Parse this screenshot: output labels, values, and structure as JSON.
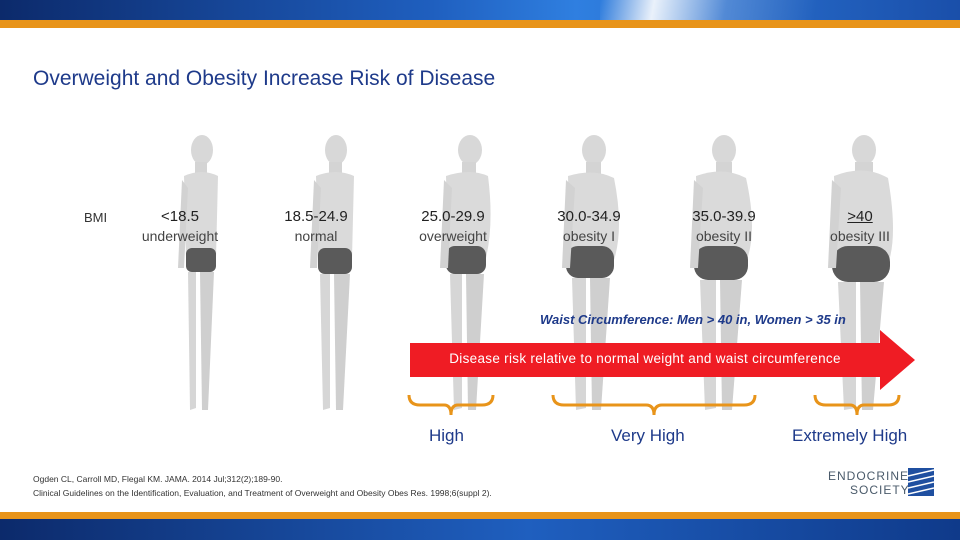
{
  "slide": {
    "title": "Overweight and Obesity Increase Risk of Disease",
    "bmi_label": "BMI",
    "categories": [
      {
        "range": "<18.5",
        "description": "underweight"
      },
      {
        "range": "18.5-24.9",
        "description": "normal"
      },
      {
        "range": "25.0-29.9",
        "description": "overweight"
      },
      {
        "range": "30.0-34.9",
        "description": "obesity I"
      },
      {
        "range": "35.0-39.9",
        "description": "obesity II"
      },
      {
        "range": ">40",
        "description": "obesity III"
      }
    ],
    "waist_note": "Waist Circumference: Men > 40 in, Women > 35 in",
    "arrow_text": "Disease risk relative to normal weight and waist circumference",
    "risk_levels": [
      "High",
      "Very High",
      "Extremely High"
    ],
    "citation": [
      "Ogden CL, Carroll MD, Flegal KM. JAMA. 2014 Jul;312(2);189-90.",
      "Clinical Guidelines on the Identification, Evaluation, and Treatment of Overweight and Obesity Obes Res. 1998;6(suppl 2)."
    ],
    "logo": {
      "line1": "ENDOCRINE",
      "line2": "SOCIETY"
    }
  },
  "colors": {
    "accent_orange": "#e8941a",
    "title_blue": "#1e3a8a",
    "arrow_red": "#ef1c24",
    "bar_blue": "#1f5fbf"
  }
}
